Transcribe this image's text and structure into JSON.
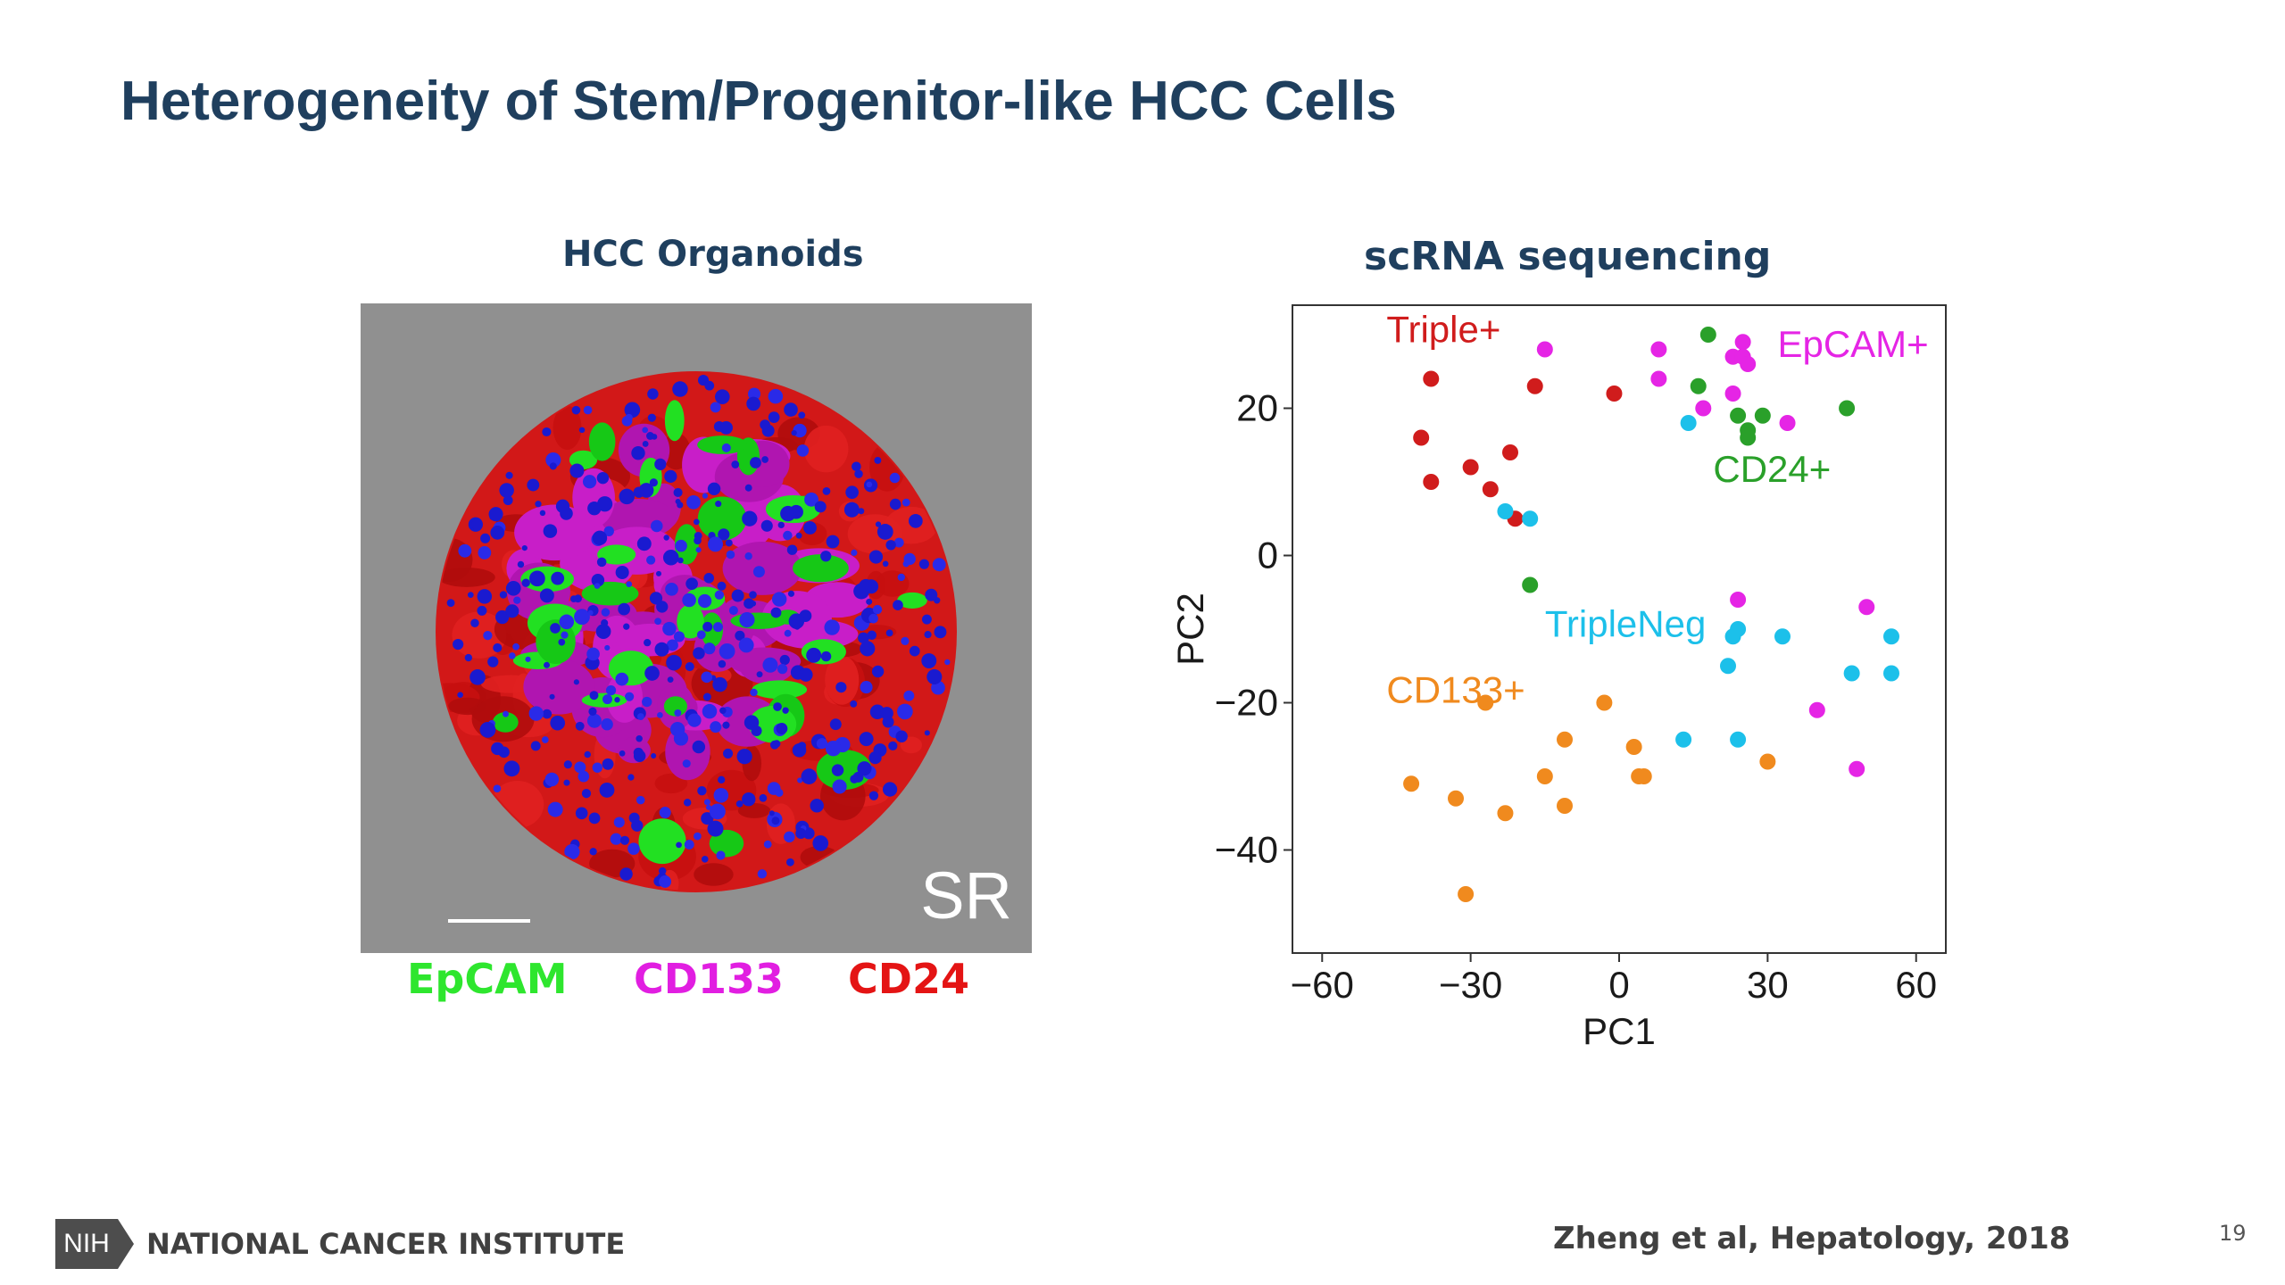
{
  "slide": {
    "title": "Heterogeneity of Stem/Progenitor-like HCC Cells",
    "page_number": "19",
    "citation": "Zheng et al, Hepatology, 2018"
  },
  "organoid_panel": {
    "title": "HCC Organoids",
    "corner_label": "SR",
    "legend": [
      {
        "label": "EpCAM",
        "color": "#2ee62e"
      },
      {
        "label": "CD133",
        "color": "#e11ee1"
      },
      {
        "label": "CD24",
        "color": "#e41414"
      }
    ]
  },
  "footer": {
    "logo_text": "NIH",
    "institute": "NATIONAL CANCER INSTITUTE"
  },
  "chart_data": {
    "type": "scatter",
    "title": "scRNA sequencing",
    "xlabel": "PC1",
    "ylabel": "PC2",
    "xlim": [
      -66,
      66
    ],
    "ylim": [
      -54,
      34
    ],
    "xticks": [
      -60,
      -30,
      0,
      30,
      60
    ],
    "yticks": [
      -40,
      -20,
      0,
      20
    ],
    "x_tick_labels": [
      "−60",
      "−30",
      "0",
      "30",
      "60"
    ],
    "y_tick_labels": [
      "−40",
      "−20",
      "0",
      "20"
    ],
    "grid": false,
    "series": [
      {
        "name": "Triple+",
        "color": "#d01c1c",
        "points": [
          [
            -38,
            24
          ],
          [
            -40,
            16
          ],
          [
            -38,
            10
          ],
          [
            -30,
            12
          ],
          [
            -26,
            9
          ],
          [
            -22,
            14
          ],
          [
            -21,
            5
          ],
          [
            -17,
            23
          ],
          [
            -1,
            22
          ]
        ]
      },
      {
        "name": "EpCAM+",
        "color": "#e525e5",
        "points": [
          [
            -15,
            28
          ],
          [
            8,
            28
          ],
          [
            8,
            24
          ],
          [
            17,
            20
          ],
          [
            23,
            22
          ],
          [
            23,
            27
          ],
          [
            25,
            29
          ],
          [
            25,
            27
          ],
          [
            26,
            26
          ],
          [
            34,
            18
          ],
          [
            24,
            -6
          ],
          [
            40,
            -21
          ],
          [
            50,
            -7
          ],
          [
            48,
            -29
          ]
        ]
      },
      {
        "name": "CD24+",
        "color": "#2aa02a",
        "points": [
          [
            18,
            30
          ],
          [
            16,
            23
          ],
          [
            24,
            19
          ],
          [
            26,
            17
          ],
          [
            26,
            16
          ],
          [
            29,
            19
          ],
          [
            46,
            20
          ],
          [
            -18,
            -4
          ]
        ]
      },
      {
        "name": "TripleNeg",
        "color": "#1cc0ea",
        "points": [
          [
            -23,
            6
          ],
          [
            -18,
            5
          ],
          [
            14,
            18
          ],
          [
            23,
            -11
          ],
          [
            24,
            -10
          ],
          [
            22,
            -15
          ],
          [
            33,
            -11
          ],
          [
            55,
            -11
          ],
          [
            55,
            -16
          ],
          [
            47,
            -16
          ],
          [
            13,
            -25
          ],
          [
            24,
            -25
          ]
        ]
      },
      {
        "name": "CD133+",
        "color": "#f08a1e",
        "points": [
          [
            -27,
            -20
          ],
          [
            -42,
            -31
          ],
          [
            -33,
            -33
          ],
          [
            -23,
            -35
          ],
          [
            -15,
            -30
          ],
          [
            -11,
            -34
          ],
          [
            -11,
            -25
          ],
          [
            -3,
            -20
          ],
          [
            4,
            -30
          ],
          [
            3,
            -26
          ],
          [
            5,
            -30
          ],
          [
            30,
            -28
          ],
          [
            -31,
            -46
          ]
        ]
      }
    ],
    "annotations": [
      {
        "text": "Triple+",
        "x": -47,
        "y": 29,
        "color": "#d01c1c"
      },
      {
        "text": "EpCAM+",
        "x": 32,
        "y": 27,
        "color": "#e525e5"
      },
      {
        "text": "CD24+",
        "x": 19,
        "y": 10,
        "color": "#2aa02a"
      },
      {
        "text": "TripleNeg",
        "x": -15,
        "y": -11,
        "color": "#1cc0ea"
      },
      {
        "text": "CD133+",
        "x": -47,
        "y": -20,
        "color": "#f08a1e"
      }
    ]
  }
}
